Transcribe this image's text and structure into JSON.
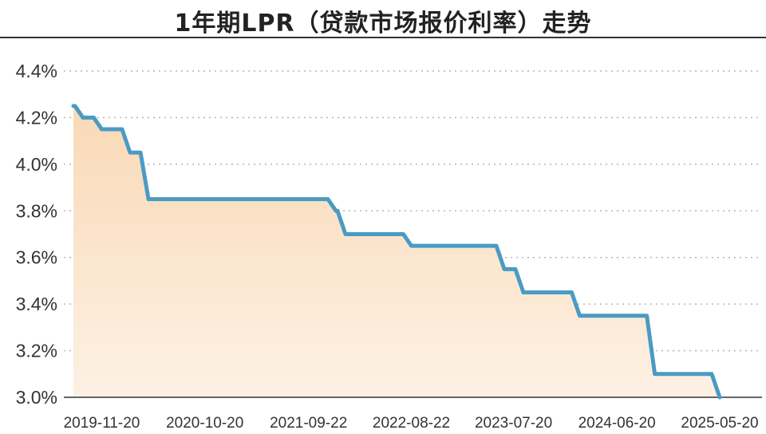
{
  "chart_data": {
    "type": "area",
    "title": "1年期LPR（贷款市场报价利率）走势",
    "xlabel": "",
    "ylabel": "",
    "ylim": [
      3.0,
      4.4
    ],
    "yticks": [
      "3.0%",
      "3.2%",
      "3.4%",
      "3.6%",
      "3.8%",
      "4.0%",
      "4.2%",
      "4.4%"
    ],
    "ytick_values": [
      3.0,
      3.2,
      3.4,
      3.6,
      3.8,
      4.0,
      4.2,
      4.4
    ],
    "xticks": [
      "2019-11-20",
      "2020-10-20",
      "2021-09-22",
      "2022-08-22",
      "2023-07-20",
      "2024-06-20",
      "2025-05-20"
    ],
    "grid": true,
    "series": [
      {
        "x": [
          "2019-08-20",
          "2019-09-20",
          "2019-11-20",
          "2020-02-20",
          "2020-04-20",
          "2021-12-20",
          "2022-01-20",
          "2022-08-22",
          "2023-06-20",
          "2023-08-21",
          "2024-02-20",
          "2024-07-22",
          "2024-10-21",
          "2025-05-20"
        ],
        "values": [
          4.25,
          4.2,
          4.15,
          4.05,
          3.85,
          3.8,
          3.7,
          3.65,
          3.55,
          3.45,
          3.35,
          3.35,
          3.1,
          3.0
        ]
      }
    ],
    "colors": {
      "line": "#4a9bc4",
      "fill_top": "#f9d9b6",
      "fill_bottom": "#fdf1e4",
      "grid": "#b5b5b5"
    }
  }
}
